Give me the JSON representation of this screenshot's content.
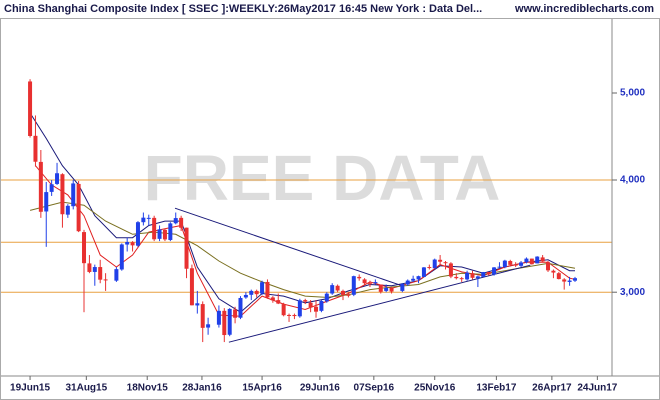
{
  "chart_data": {
    "type": "candlestick",
    "title": "China Shanghai Composite Index [ SSEC ]:WEEKLY:26May2017 16:45 New York : Data Del...",
    "source": "www.incrediblecharts.com",
    "watermark": "FREE DATA",
    "log_scale": true,
    "up_color": "#2040e8",
    "down_color": "#e83030",
    "xlim": [
      "11May15",
      "13Jul17"
    ],
    "xticks": [
      "19Jun15",
      "31Aug15",
      "18Nov15",
      "28Jan16",
      "15Apr16",
      "29Jun16",
      "07Sep16",
      "25Nov16",
      "13Feb17",
      "26Apr17",
      "24Jun17"
    ],
    "ylim": [
      2420,
      6060
    ],
    "yticks": [
      {
        "value": 3000,
        "label": "3,000"
      },
      {
        "value": 4000,
        "label": "4,000"
      },
      {
        "value": 5000,
        "label": "5,000"
      }
    ],
    "x": [
      "19Jun15",
      "26Jun15",
      "03Jul15",
      "10Jul15",
      "17Jul15",
      "24Jul15",
      "31Jul15",
      "07Aug15",
      "14Aug15",
      "21Aug15",
      "28Aug15",
      "04Sep15",
      "11Sep15",
      "18Sep15",
      "25Sep15",
      "09Oct15",
      "16Oct15",
      "23Oct15",
      "30Oct15",
      "06Nov15",
      "13Nov15",
      "20Nov15",
      "27Nov15",
      "04Dec15",
      "11Dec15",
      "18Dec15",
      "25Dec15",
      "01Jan16",
      "08Jan16",
      "15Jan16",
      "22Jan16",
      "29Jan16",
      "05Feb16",
      "19Feb16",
      "26Feb16",
      "04Mar16",
      "11Mar16",
      "18Mar16",
      "25Mar16",
      "01Apr16",
      "08Apr16",
      "15Apr16",
      "22Apr16",
      "29Apr16",
      "06May16",
      "13May16",
      "20May16",
      "27May16",
      "03Jun16",
      "10Jun16",
      "17Jun16",
      "24Jun16",
      "01Jul16",
      "08Jul16",
      "15Jul16",
      "22Jul16",
      "29Jul16",
      "05Aug16",
      "12Aug16",
      "19Aug16",
      "26Aug16",
      "02Sep16",
      "09Sep16",
      "16Sep16",
      "23Sep16",
      "30Sep16",
      "14Oct16",
      "21Oct16",
      "28Oct16",
      "04Nov16",
      "11Nov16",
      "18Nov16",
      "25Nov16",
      "02Dec16",
      "09Dec16",
      "16Dec16",
      "23Dec16",
      "30Dec16",
      "06Jan17",
      "13Jan17",
      "20Jan17",
      "27Jan17",
      "03Feb17",
      "10Feb17",
      "17Feb17",
      "24Feb17",
      "03Mar17",
      "10Mar17",
      "17Mar17",
      "24Mar17",
      "31Mar17",
      "07Apr17",
      "14Apr17",
      "21Apr17",
      "28Apr17",
      "05May17",
      "12May17",
      "19May17",
      "26May17"
    ],
    "open": [
      5150,
      4480,
      4190,
      3690,
      3880,
      3960,
      4060,
      3660,
      3740,
      3960,
      3500,
      3230,
      3160,
      3200,
      3100,
      3090,
      3180,
      3390,
      3410,
      3380,
      3590,
      3630,
      3630,
      3440,
      3520,
      3430,
      3580,
      3630,
      3540,
      3190,
      2900,
      2910,
      2740,
      2760,
      2860,
      2690,
      2870,
      2810,
      2960,
      2980,
      3010,
      2990,
      3080,
      2960,
      2940,
      2910,
      2830,
      2830,
      2820,
      2940,
      2920,
      2890,
      2860,
      2930,
      2990,
      3050,
      3010,
      2980,
      2980,
      3120,
      3100,
      3070,
      3070,
      3060,
      3010,
      3030,
      3010,
      3060,
      3090,
      3100,
      3120,
      3200,
      3190,
      3260,
      3240,
      3230,
      3120,
      3110,
      3100,
      3150,
      3110,
      3120,
      3160,
      3140,
      3200,
      3200,
      3250,
      3220,
      3210,
      3240,
      3270,
      3230,
      3280,
      3240,
      3170,
      3150,
      3100,
      3080,
      3090
    ],
    "high": [
      5180,
      4720,
      4320,
      3980,
      4000,
      4180,
      4070,
      3760,
      4000,
      3990,
      3520,
      3300,
      3220,
      3260,
      3150,
      3200,
      3400,
      3450,
      3420,
      3600,
      3680,
      3660,
      3650,
      3560,
      3530,
      3590,
      3680,
      3650,
      3540,
      3220,
      3010,
      2930,
      2810,
      2900,
      2880,
      2880,
      2890,
      2970,
      3000,
      3020,
      3020,
      3090,
      3100,
      2970,
      2990,
      2920,
      2840,
      2840,
      2950,
      2950,
      2940,
      2940,
      2940,
      3000,
      3070,
      3060,
      3020,
      3000,
      3130,
      3140,
      3110,
      3090,
      3100,
      3060,
      3060,
      3040,
      3070,
      3100,
      3130,
      3130,
      3200,
      3220,
      3270,
      3300,
      3250,
      3240,
      3150,
      3120,
      3170,
      3170,
      3130,
      3160,
      3160,
      3200,
      3240,
      3260,
      3260,
      3240,
      3250,
      3280,
      3270,
      3290,
      3300,
      3250,
      3180,
      3160,
      3110,
      3120,
      3120
    ],
    "low": [
      4460,
      4140,
      3630,
      3370,
      3840,
      3950,
      3540,
      3630,
      3710,
      3500,
      2850,
      3150,
      3050,
      3070,
      3010,
      3080,
      3170,
      3330,
      3330,
      3370,
      3560,
      3560,
      3420,
      3420,
      3420,
      3420,
      3570,
      3510,
      3110,
      2900,
      2840,
      2640,
      2690,
      2740,
      2640,
      2680,
      2770,
      2800,
      2950,
      2940,
      2960,
      2980,
      2950,
      2920,
      2910,
      2820,
      2780,
      2800,
      2810,
      2910,
      2850,
      2810,
      2850,
      2920,
      2980,
      3000,
      2940,
      2960,
      2970,
      3090,
      3060,
      3040,
      3060,
      2990,
      3000,
      2990,
      3000,
      3050,
      3080,
      3070,
      3120,
      3180,
      3190,
      3220,
      3180,
      3110,
      3100,
      3080,
      3090,
      3100,
      3040,
      3120,
      3130,
      3130,
      3190,
      3190,
      3210,
      3200,
      3200,
      3230,
      3220,
      3230,
      3240,
      3160,
      3110,
      3100,
      3020,
      3050,
      3080
    ],
    "close": [
      4478,
      4192,
      3687,
      3878,
      3957,
      4070,
      3664,
      3744,
      3965,
      3508,
      3232,
      3160,
      3200,
      3098,
      3093,
      3183,
      3391,
      3412,
      3383,
      3590,
      3632,
      3630,
      3436,
      3525,
      3435,
      3579,
      3628,
      3539,
      3186,
      2901,
      2916,
      2738,
      2763,
      2860,
      2688,
      2874,
      2810,
      2956,
      2979,
      3010,
      2985,
      3078,
      2960,
      2938,
      2914,
      2828,
      2826,
      2822,
      2938,
      2928,
      2886,
      2854,
      2933,
      2989,
      3055,
      3013,
      2979,
      2977,
      3126,
      3109,
      3070,
      3068,
      3079,
      3003,
      3033,
      3005,
      3064,
      3091,
      3105,
      3126,
      3197,
      3193,
      3262,
      3244,
      3233,
      3123,
      3110,
      3104,
      3154,
      3113,
      3124,
      3159,
      3140,
      3197,
      3203,
      3253,
      3218,
      3213,
      3238,
      3270,
      3223,
      3287,
      3247,
      3173,
      3155,
      3103,
      3083,
      3091,
      3110
    ],
    "lines": [
      {
        "color": "#1a1a7a",
        "x": [
          "19Jun15",
          "10Jul15",
          "31Jul15",
          "21Aug15",
          "11Sep15",
          "09Oct15",
          "30Oct15",
          "20Nov15",
          "11Dec15",
          "01Jan16",
          "22Jan16",
          "19Feb16",
          "18Mar16",
          "15Apr16",
          "13May16",
          "10Jun16",
          "08Jul16",
          "05Aug16",
          "02Sep16",
          "30Sep16",
          "04Nov16",
          "02Dec16",
          "30Dec16",
          "27Jan17",
          "24Feb17",
          "24Mar17",
          "21Apr17",
          "19May17",
          "26May17"
        ],
        "values": [
          4750,
          4450,
          4150,
          3950,
          3650,
          3450,
          3450,
          3560,
          3600,
          3600,
          3200,
          2950,
          2850,
          2990,
          2970,
          2920,
          2950,
          3010,
          3060,
          3050,
          3090,
          3210,
          3200,
          3150,
          3200,
          3240,
          3260,
          3170,
          3170
        ]
      },
      {
        "color": "#e02020",
        "x": [
          "26Jun15",
          "17Jul15",
          "07Aug15",
          "28Aug15",
          "18Sep15",
          "09Oct15",
          "30Oct15",
          "20Nov15",
          "11Dec15",
          "01Jan16",
          "22Jan16",
          "19Feb16",
          "18Mar16",
          "15Apr16",
          "13May16",
          "10Jun16",
          "08Jul16",
          "05Aug16",
          "02Sep16",
          "30Sep16",
          "04Nov16",
          "02Dec16",
          "30Dec16",
          "27Jan17",
          "24Feb17",
          "24Mar17",
          "21Apr17",
          "19May17",
          "26May17"
        ],
        "values": [
          4150,
          3950,
          3850,
          3650,
          3300,
          3200,
          3300,
          3500,
          3530,
          3560,
          3150,
          2830,
          2820,
          2970,
          2910,
          2870,
          2930,
          2990,
          3080,
          3030,
          3090,
          3220,
          3160,
          3130,
          3200,
          3240,
          3240,
          3110,
          3100
        ]
      },
      {
        "color": "#7a7020",
        "x": [
          "19Jun15",
          "31Jul15",
          "28Aug15",
          "25Sep15",
          "30Oct15",
          "27Nov15",
          "25Dec15",
          "22Jan16",
          "19Feb16",
          "18Mar16",
          "15Apr16",
          "13May16",
          "10Jun16",
          "08Jul16",
          "05Aug16",
          "02Sep16",
          "30Sep16",
          "04Nov16",
          "02Dec16",
          "30Dec16",
          "27Jan17",
          "24Feb17",
          "24Mar17",
          "21Apr17",
          "26May17"
        ],
        "values": [
          3700,
          3780,
          3750,
          3600,
          3480,
          3500,
          3480,
          3380,
          3250,
          3150,
          3080,
          3020,
          2970,
          2960,
          2980,
          3020,
          3040,
          3060,
          3120,
          3150,
          3140,
          3170,
          3200,
          3230,
          3190
        ]
      }
    ],
    "trendlines": [
      {
        "color": "#1a1a7a",
        "x": [
          "24Dec15",
          "12Oct16"
        ],
        "values": [
          3721,
          3054
        ]
      },
      {
        "color": "#1a1a7a",
        "x": [
          "03Mar16",
          "29Mar17"
        ],
        "values": [
          2639,
          3215
        ]
      }
    ],
    "hlines": {
      "color": "#e8a040",
      "values": [
        4000,
        3410,
        3000
      ]
    }
  }
}
